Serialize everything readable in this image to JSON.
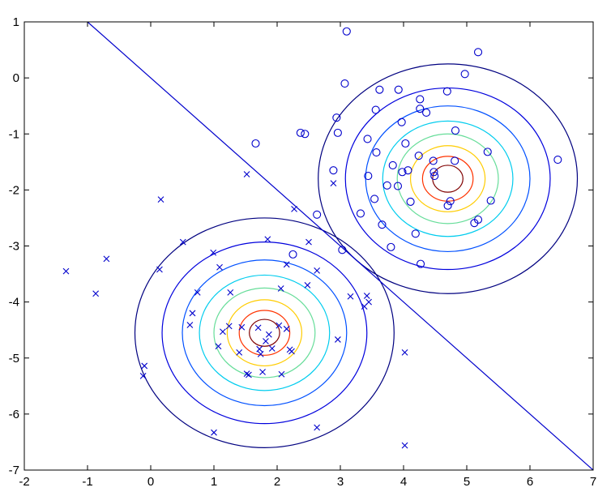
{
  "chart_data": {
    "type": "scatter",
    "title": "",
    "xlabel": "",
    "ylabel": "",
    "xlim": [
      -2,
      7
    ],
    "ylim": [
      -7,
      1
    ],
    "xticks": [
      -2,
      -1,
      0,
      1,
      2,
      3,
      4,
      5,
      6,
      7
    ],
    "yticks": [
      1,
      0,
      -1,
      -2,
      -3,
      -4,
      -5,
      -6,
      -7
    ],
    "grid": false,
    "series": [
      {
        "marker": "x",
        "color": "#0000cc",
        "points": [
          [
            -1.34,
            -3.45
          ],
          [
            -0.87,
            -3.85
          ],
          [
            -0.7,
            -3.23
          ],
          [
            -0.12,
            -5.32
          ],
          [
            -0.1,
            -5.14
          ],
          [
            0.14,
            -3.42
          ],
          [
            0.16,
            -2.17
          ],
          [
            0.51,
            -2.93
          ],
          [
            0.62,
            -4.41
          ],
          [
            0.66,
            -4.2
          ],
          [
            0.74,
            -3.83
          ],
          [
            0.99,
            -3.12
          ],
          [
            1.0,
            -6.33
          ],
          [
            1.07,
            -4.79
          ],
          [
            1.09,
            -3.38
          ],
          [
            1.14,
            -4.53
          ],
          [
            1.24,
            -4.43
          ],
          [
            1.26,
            -3.83
          ],
          [
            1.4,
            -4.9
          ],
          [
            1.44,
            -4.45
          ],
          [
            1.52,
            -1.72
          ],
          [
            1.52,
            -5.28
          ],
          [
            1.55,
            -5.3
          ],
          [
            1.7,
            -4.46
          ],
          [
            1.72,
            -4.84
          ],
          [
            1.74,
            -4.93
          ],
          [
            1.77,
            -5.25
          ],
          [
            1.82,
            -4.7
          ],
          [
            1.85,
            -2.88
          ],
          [
            1.87,
            -4.58
          ],
          [
            1.92,
            -4.83
          ],
          [
            2.03,
            -4.42
          ],
          [
            2.06,
            -3.76
          ],
          [
            2.07,
            -5.29
          ],
          [
            2.15,
            -3.33
          ],
          [
            2.15,
            -4.48
          ],
          [
            2.2,
            -4.85
          ],
          [
            2.23,
            -4.88
          ],
          [
            2.27,
            -2.34
          ],
          [
            2.5,
            -2.93
          ],
          [
            2.48,
            -3.7
          ],
          [
            2.63,
            -3.44
          ],
          [
            2.63,
            -6.24
          ],
          [
            2.89,
            -1.88
          ],
          [
            2.96,
            -4.67
          ],
          [
            3.16,
            -3.9
          ],
          [
            3.38,
            -4.08
          ],
          [
            3.42,
            -3.89
          ],
          [
            3.45,
            -4.0
          ],
          [
            4.02,
            -4.9
          ],
          [
            4.02,
            -6.56
          ]
        ]
      },
      {
        "marker": "o",
        "color": "#0000cc",
        "points": [
          [
            1.66,
            -1.17
          ],
          [
            2.25,
            -3.15
          ],
          [
            2.37,
            -0.98
          ],
          [
            2.44,
            -1.0
          ],
          [
            2.63,
            -2.44
          ],
          [
            2.89,
            -1.65
          ],
          [
            2.94,
            -0.71
          ],
          [
            2.96,
            -0.98
          ],
          [
            3.03,
            -3.07
          ],
          [
            3.07,
            -0.1
          ],
          [
            3.1,
            0.83
          ],
          [
            3.32,
            -2.42
          ],
          [
            3.43,
            -1.09
          ],
          [
            3.44,
            -1.75
          ],
          [
            3.54,
            -2.16
          ],
          [
            3.56,
            -0.57
          ],
          [
            3.57,
            -1.33
          ],
          [
            3.62,
            -0.21
          ],
          [
            3.66,
            -2.62
          ],
          [
            3.74,
            -1.92
          ],
          [
            3.8,
            -3.02
          ],
          [
            3.83,
            -1.56
          ],
          [
            3.91,
            -1.93
          ],
          [
            3.92,
            -0.21
          ],
          [
            3.97,
            -0.79
          ],
          [
            3.98,
            -1.68
          ],
          [
            4.03,
            -1.17
          ],
          [
            4.07,
            -1.65
          ],
          [
            4.11,
            -2.21
          ],
          [
            4.19,
            -2.78
          ],
          [
            4.24,
            -1.39
          ],
          [
            4.26,
            -0.38
          ],
          [
            4.26,
            -0.55
          ],
          [
            4.27,
            -3.32
          ],
          [
            4.36,
            -0.62
          ],
          [
            4.47,
            -1.48
          ],
          [
            4.48,
            -1.68
          ],
          [
            4.49,
            -1.75
          ],
          [
            4.69,
            -0.24
          ],
          [
            4.7,
            -2.28
          ],
          [
            4.74,
            -2.2
          ],
          [
            4.81,
            -1.48
          ],
          [
            4.82,
            -0.94
          ],
          [
            4.97,
            0.07
          ],
          [
            5.12,
            -2.59
          ],
          [
            5.18,
            -2.53
          ],
          [
            5.18,
            0.46
          ],
          [
            5.33,
            -1.32
          ],
          [
            5.38,
            -2.19
          ],
          [
            6.44,
            -1.46
          ]
        ]
      }
    ],
    "decision_boundary": {
      "from": [
        -1,
        1
      ],
      "to": [
        7,
        -7
      ],
      "color": "#0000cc"
    },
    "contour_colors": [
      "#000080",
      "#0000dd",
      "#0050ff",
      "#00ccee",
      "#66dd99",
      "#ffcc00",
      "#ff3300",
      "#800000"
    ],
    "contour_sets": [
      {
        "center": [
          1.8,
          -4.55
        ],
        "radii": [
          2.05,
          1.62,
          1.3,
          1.03,
          0.8,
          0.59,
          0.4,
          0.24
        ]
      },
      {
        "center": [
          4.7,
          -1.8
        ],
        "radii": [
          2.05,
          1.62,
          1.3,
          1.03,
          0.8,
          0.59,
          0.4,
          0.24
        ]
      }
    ]
  }
}
